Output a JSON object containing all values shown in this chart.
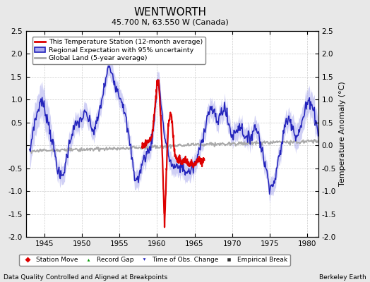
{
  "title": "WENTWORTH",
  "subtitle": "45.700 N, 63.550 W (Canada)",
  "ylabel": "Temperature Anomaly (°C)",
  "footer_left": "Data Quality Controlled and Aligned at Breakpoints",
  "footer_right": "Berkeley Earth",
  "xlim": [
    1942.5,
    1981.5
  ],
  "ylim": [
    -2.0,
    2.5
  ],
  "yticks": [
    -2.0,
    -1.5,
    -1.0,
    -0.5,
    0.0,
    0.5,
    1.0,
    1.5,
    2.0,
    2.5
  ],
  "xticks": [
    1945,
    1950,
    1955,
    1960,
    1965,
    1970,
    1975,
    1980
  ],
  "bg_color": "#e8e8e8",
  "plot_bg_color": "#ffffff",
  "legend_line_label": "This Temperature Station (12-month average)",
  "legend_band_label": "Regional Expectation with 95% uncertainty",
  "legend_gray_label": "Global Land (5-year average)",
  "station_color": "#dd0000",
  "regional_color": "#2222bb",
  "regional_band_color": "#aaaaee",
  "global_color": "#aaaaaa",
  "marker_legend": [
    {
      "label": "Station Move",
      "marker": "D",
      "color": "#dd0000"
    },
    {
      "label": "Record Gap",
      "marker": "^",
      "color": "#009900"
    },
    {
      "label": "Time of Obs. Change",
      "marker": "v",
      "color": "#2222bb"
    },
    {
      "label": "Empirical Break",
      "marker": "s",
      "color": "#333333"
    }
  ]
}
